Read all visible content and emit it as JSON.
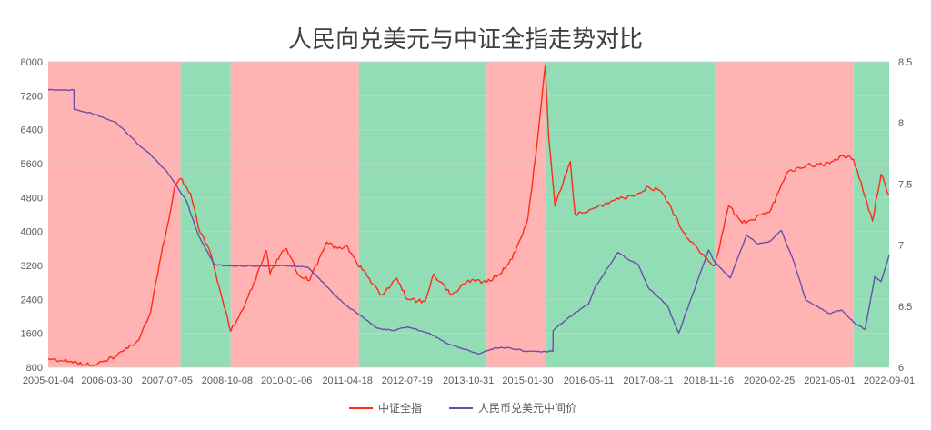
{
  "chart_data": {
    "type": "line",
    "title": "人民向兑美元与中证全指走势对比",
    "x_tick_labels": [
      "2005-01-04",
      "2006-03-30",
      "2007-07-05",
      "2008-10-08",
      "2010-01-06",
      "2011-04-18",
      "2012-07-19",
      "2013-10-31",
      "2015-01-30",
      "2016-05-11",
      "2017-08-11",
      "2018-11-16",
      "2020-02-25",
      "2021-06-01",
      "2022-09-01"
    ],
    "y_left": {
      "ticks": [
        800,
        1600,
        2400,
        3200,
        4000,
        4800,
        5600,
        6400,
        7200,
        8000
      ],
      "range": [
        800,
        8000
      ]
    },
    "y_right": {
      "ticks": [
        "6",
        "6.5",
        "7",
        "7.5",
        "8",
        "8.5"
      ],
      "range": [
        6,
        8.5
      ]
    },
    "grid": true,
    "legend_position": "bottom",
    "colors": {
      "csi": "#ff2a1a",
      "cny": "#6a4fa8",
      "shade_red": "#ffb3b3",
      "shade_green": "#92ddb6"
    },
    "shaded_periods": [
      {
        "start": "2005-01-04",
        "end": "2007-10-16",
        "color": "red"
      },
      {
        "start": "2007-10-16",
        "end": "2008-11-04",
        "color": "green"
      },
      {
        "start": "2008-11-04",
        "end": "2011-07-15",
        "color": "red"
      },
      {
        "start": "2011-07-15",
        "end": "2014-03-20",
        "color": "green"
      },
      {
        "start": "2014-03-20",
        "end": "2015-06-15",
        "color": "red"
      },
      {
        "start": "2015-06-15",
        "end": "2019-01-02",
        "color": "green"
      },
      {
        "start": "2019-01-02",
        "end": "2021-12-01",
        "color": "red"
      },
      {
        "start": "2021-12-01",
        "end": "2022-09-01",
        "color": "green"
      }
    ],
    "series": [
      {
        "name": "中证全指",
        "axis": "left",
        "x": [
          "2005-01-04",
          "2005-06-01",
          "2005-12-01",
          "2006-06-01",
          "2006-12-01",
          "2007-03-01",
          "2007-06-01",
          "2007-07-05",
          "2007-09-01",
          "2007-10-16",
          "2008-01-01",
          "2008-03-01",
          "2008-06-01",
          "2008-09-01",
          "2008-11-04",
          "2009-02-01",
          "2009-05-01",
          "2009-08-03",
          "2009-09-01",
          "2009-11-20",
          "2010-01-06",
          "2010-04-01",
          "2010-07-02",
          "2010-11-10",
          "2011-02-01",
          "2011-04-18",
          "2011-07-01",
          "2011-10-01",
          "2012-01-05",
          "2012-05-01",
          "2012-07-19",
          "2012-12-03",
          "2013-02-08",
          "2013-06-25",
          "2013-10-31",
          "2014-03-20",
          "2014-07-01",
          "2014-10-01",
          "2015-01-30",
          "2015-04-01",
          "2015-06-12",
          "2015-07-08",
          "2015-08-26",
          "2015-12-22",
          "2016-01-28",
          "2016-05-11",
          "2016-12-01",
          "2017-05-01",
          "2017-08-11",
          "2017-11-14",
          "2018-02-09",
          "2018-06-01",
          "2018-11-16",
          "2019-01-03",
          "2019-04-19",
          "2019-08-01",
          "2020-02-25",
          "2020-07-13",
          "2020-12-01",
          "2021-06-01",
          "2021-09-15",
          "2021-12-01",
          "2022-04-26",
          "2022-07-01",
          "2022-09-01"
        ],
        "values": [
          1010,
          930,
          850,
          1050,
          1450,
          2100,
          3650,
          4100,
          5050,
          5250,
          4900,
          4100,
          3500,
          2400,
          1650,
          2150,
          2800,
          3550,
          3000,
          3450,
          3600,
          3000,
          2850,
          3750,
          3600,
          3650,
          3250,
          2900,
          2500,
          2900,
          2400,
          2350,
          3000,
          2500,
          2850,
          2800,
          3000,
          3350,
          4300,
          5800,
          7900,
          6250,
          4600,
          5650,
          4400,
          4500,
          4750,
          4850,
          5050,
          4950,
          4500,
          3850,
          3300,
          3200,
          4600,
          4200,
          4450,
          5400,
          5550,
          5600,
          5800,
          5700,
          4250,
          5350,
          4850
        ]
      },
      {
        "name": "人民币兑美元中间价",
        "axis": "right",
        "x": [
          "2005-01-04",
          "2005-07-20",
          "2005-07-22",
          "2005-12-01",
          "2006-06-01",
          "2006-12-01",
          "2007-03-01",
          "2007-07-05",
          "2007-12-01",
          "2008-03-01",
          "2008-07-01",
          "2008-10-08",
          "2009-06-01",
          "2010-01-06",
          "2010-06-18",
          "2010-09-01",
          "2011-01-01",
          "2011-04-18",
          "2011-08-01",
          "2011-12-01",
          "2012-04-01",
          "2012-07-19",
          "2013-01-01",
          "2013-06-01",
          "2013-10-31",
          "2014-01-14",
          "2014-06-01",
          "2014-09-01",
          "2015-01-30",
          "2015-08-10",
          "2015-08-12",
          "2015-12-01",
          "2016-05-11",
          "2016-07-01",
          "2016-12-20",
          "2017-03-01",
          "2017-05-26",
          "2017-08-11",
          "2018-01-01",
          "2018-04-01",
          "2018-11-16",
          "2019-01-03",
          "2019-05-01",
          "2019-09-03",
          "2019-12-01",
          "2020-02-25",
          "2020-05-27",
          "2020-09-01",
          "2020-12-01",
          "2021-06-01",
          "2021-09-01",
          "2021-12-01",
          "2022-02-28",
          "2022-05-13",
          "2022-07-01",
          "2022-09-01"
        ],
        "values": [
          8.27,
          8.27,
          8.11,
          8.08,
          8.01,
          7.82,
          7.74,
          7.6,
          7.36,
          7.08,
          6.84,
          6.83,
          6.83,
          6.83,
          6.82,
          6.74,
          6.6,
          6.5,
          6.42,
          6.32,
          6.3,
          6.33,
          6.28,
          6.19,
          6.14,
          6.11,
          6.16,
          6.16,
          6.13,
          6.13,
          6.3,
          6.4,
          6.52,
          6.66,
          6.94,
          6.89,
          6.84,
          6.65,
          6.51,
          6.28,
          6.96,
          6.86,
          6.73,
          7.08,
          7.01,
          7.03,
          7.12,
          6.86,
          6.55,
          6.44,
          6.47,
          6.37,
          6.31,
          6.74,
          6.7,
          6.92
        ]
      }
    ]
  }
}
